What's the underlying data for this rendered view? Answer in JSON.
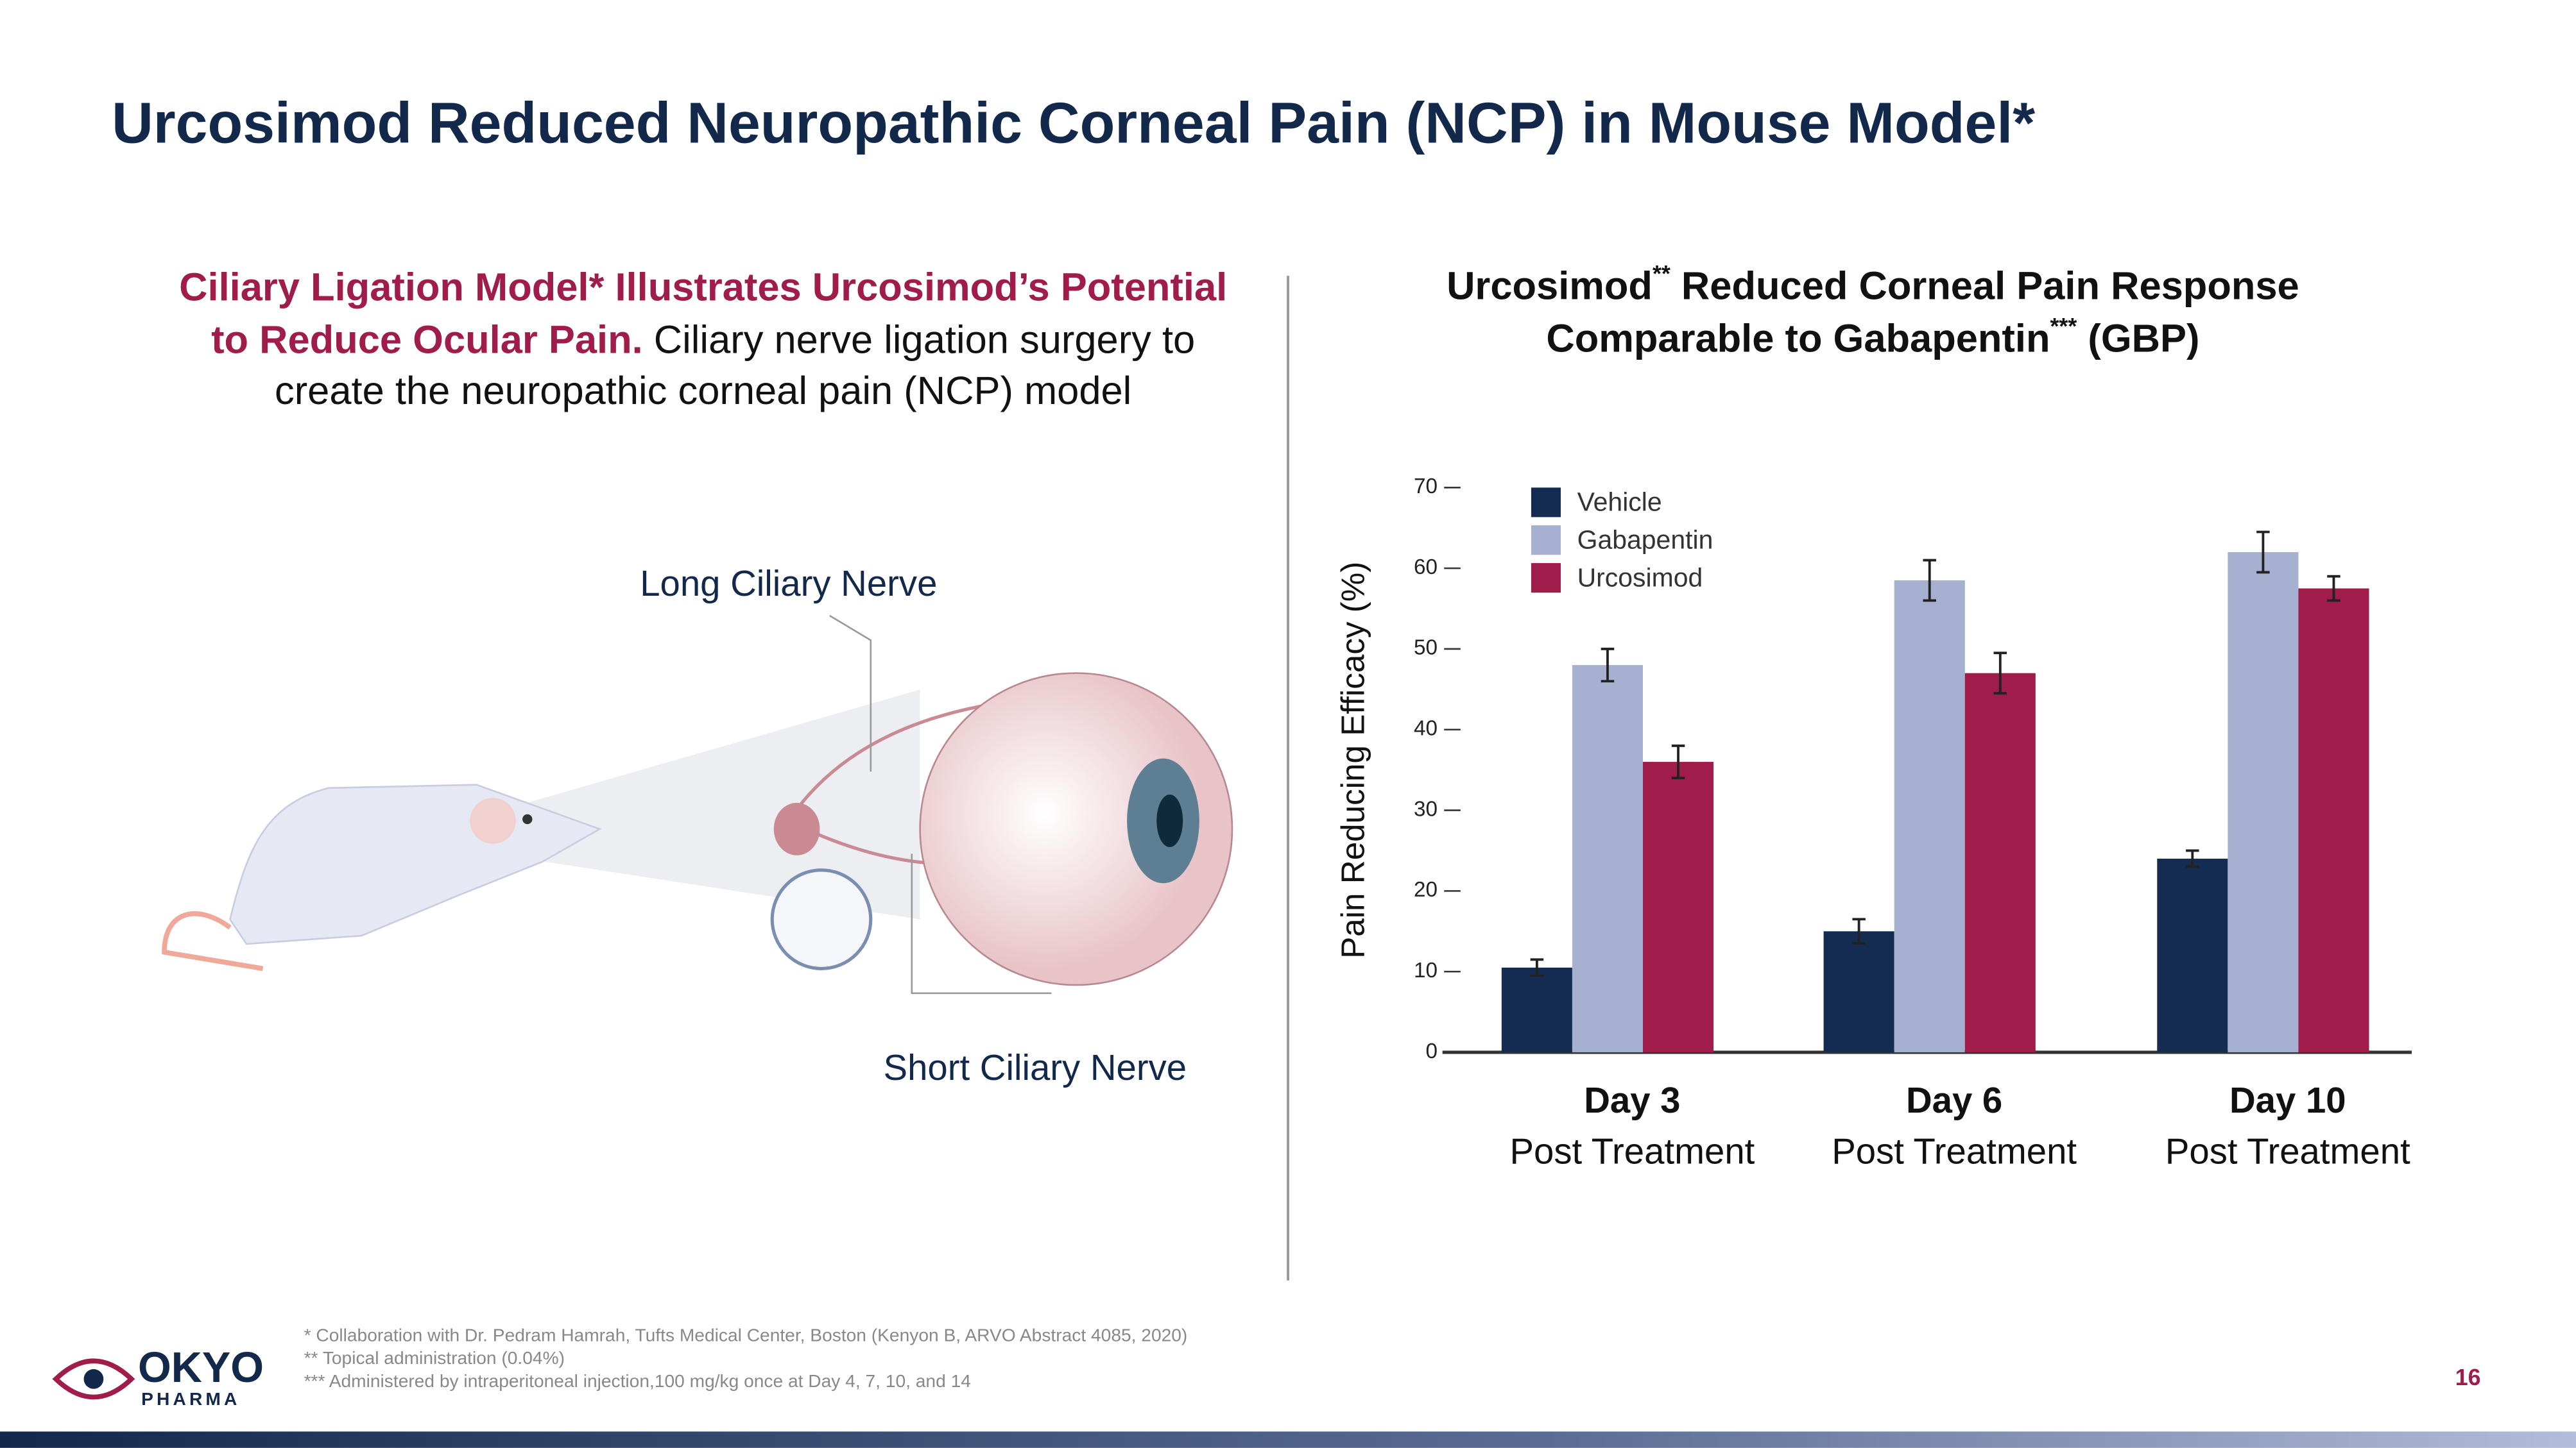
{
  "header": {
    "title": "Urcosimod Reduced Neuropathic Corneal Pain (NCP) in Mouse Model*"
  },
  "left_panel": {
    "heading": "Ciliary Ligation Model* Illustrates Urcosimod’s Potential to Reduce Ocular Pain.",
    "text": "Ciliary nerve ligation surgery to create the neuropathic corneal pain (NCP) model",
    "labels": [
      "Long Ciliary Nerve",
      "Short Ciliary Nerve"
    ]
  },
  "chart_data": {
    "type": "bar",
    "title_lines": [
      [
        "Urcosimod",
        "**",
        " Reduced Corneal Pain Response"
      ],
      [
        "Comparable to Gabapentin",
        "***",
        " (GBP)"
      ]
    ],
    "ylabel": "Pain Reducing Efficacy (%)",
    "categories": [
      "Day 3",
      "Day 6",
      "Day 10"
    ],
    "category_sublabels": [
      "Post Treatment",
      "Post Treatment",
      "Post Treatment"
    ],
    "series": [
      {
        "name": "Vehicle",
        "color": "#152c52",
        "values": [
          10.5,
          15,
          24
        ],
        "errors": [
          1,
          1.5,
          1
        ]
      },
      {
        "name": "Gabapentin",
        "color": "#a6b0d0",
        "values": [
          48,
          58.5,
          62
        ],
        "errors": [
          2,
          2.5,
          2.5
        ]
      },
      {
        "name": "Urcosimod",
        "color": "#a01c4b",
        "values": [
          36,
          47,
          57.5
        ],
        "errors": [
          2,
          2.5,
          1.5
        ]
      }
    ],
    "ylim": [
      0,
      70
    ],
    "yticks": [
      0,
      10,
      20,
      30,
      40,
      50,
      60,
      70
    ],
    "legend": "top-left"
  },
  "footer": {
    "notes": [
      "* Collaboration with Dr. Pedram Hamrah, Tufts Medical Center, Boston (Kenyon B, ARVO Abstract 4085, 2020)",
      "** Topical administration (0.04%)",
      "*** Administered by intraperitoneal injection,100 mg/kg once at Day 4, 7, 10, and 14"
    ],
    "logo": [
      "OKYO",
      "PHARMA"
    ],
    "page": "16"
  }
}
